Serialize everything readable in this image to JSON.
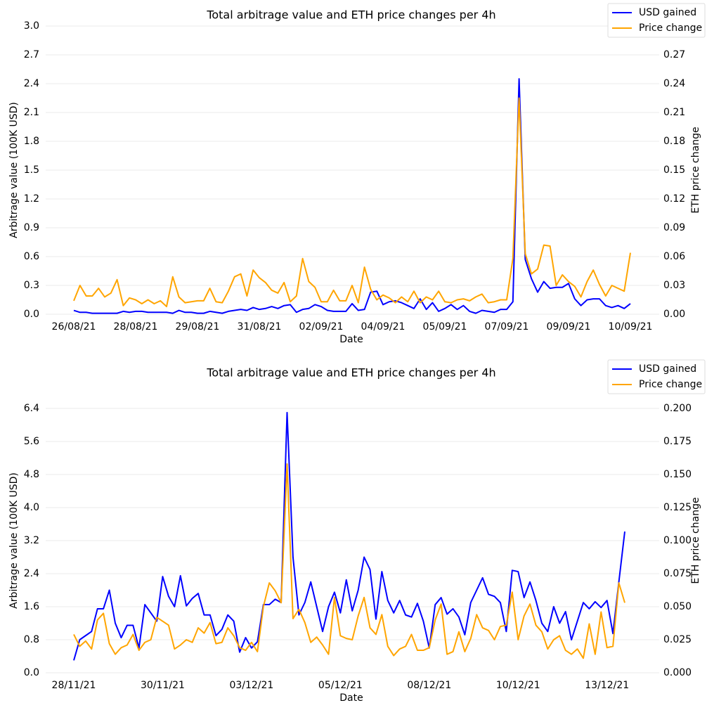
{
  "chart_data": [
    {
      "type": "line",
      "title": "Total arbitrage value and ETH price changes per 4h",
      "xlabel": "Date",
      "ylabel": "Arbitrage value (100K USD)",
      "y2label": "ETH price change",
      "categories": [
        "26/08/21",
        null,
        null,
        null,
        null,
        null,
        null,
        null,
        null,
        null,
        "28/08/21",
        null,
        null,
        null,
        null,
        null,
        null,
        null,
        null,
        null,
        "29/08/21",
        null,
        null,
        null,
        null,
        null,
        null,
        null,
        null,
        null,
        "31/08/21",
        null,
        null,
        null,
        null,
        null,
        null,
        null,
        null,
        null,
        "02/09/21",
        null,
        null,
        null,
        null,
        null,
        null,
        null,
        null,
        null,
        "04/09/21",
        null,
        null,
        null,
        null,
        null,
        null,
        null,
        null,
        null,
        "05/09/21",
        null,
        null,
        null,
        null,
        null,
        null,
        null,
        null,
        null,
        "07/09/21",
        null,
        null,
        null,
        null,
        null,
        null,
        null,
        null,
        null,
        "09/09/21",
        null,
        null,
        null,
        null,
        null,
        null,
        null,
        null,
        null,
        "10/09/21"
      ],
      "series": [
        {
          "name": "USD gained",
          "color": "#0000ff",
          "values": [
            0.04,
            0.02,
            0.02,
            0.01,
            0.01,
            0.01,
            0.01,
            0.01,
            0.03,
            0.02,
            0.03,
            0.03,
            0.02,
            0.02,
            0.02,
            0.02,
            0.01,
            0.04,
            0.02,
            0.02,
            0.01,
            0.01,
            0.03,
            0.02,
            0.01,
            0.03,
            0.04,
            0.05,
            0.04,
            0.07,
            0.05,
            0.06,
            0.08,
            0.06,
            0.09,
            0.1,
            0.02,
            0.05,
            0.06,
            0.1,
            0.08,
            0.04,
            0.03,
            0.03,
            0.03,
            0.11,
            0.04,
            0.05,
            0.23,
            0.24,
            0.1,
            0.13,
            0.14,
            0.12,
            0.09,
            0.06,
            0.16,
            0.05,
            0.12,
            0.03,
            0.06,
            0.1,
            0.05,
            0.09,
            0.03,
            0.01,
            0.04,
            0.03,
            0.02,
            0.05,
            0.05,
            0.13,
            2.45,
            0.57,
            0.37,
            0.23,
            0.34,
            0.27,
            0.28,
            0.28,
            0.32,
            0.16,
            0.09,
            0.15,
            0.16,
            0.16,
            0.09,
            0.07,
            0.09,
            0.06,
            0.11
          ]
        },
        {
          "name": "Price change",
          "color": "#ffa500",
          "axis": "y2",
          "values": [
            0.014,
            0.03,
            0.019,
            0.019,
            0.027,
            0.018,
            0.022,
            0.036,
            0.009,
            0.017,
            0.015,
            0.011,
            0.015,
            0.011,
            0.014,
            0.008,
            0.039,
            0.018,
            0.012,
            0.013,
            0.014,
            0.014,
            0.027,
            0.013,
            0.012,
            0.024,
            0.039,
            0.042,
            0.019,
            0.046,
            0.038,
            0.033,
            0.025,
            0.022,
            0.033,
            0.013,
            0.019,
            0.058,
            0.034,
            0.028,
            0.013,
            0.013,
            0.025,
            0.014,
            0.014,
            0.03,
            0.012,
            0.049,
            0.026,
            0.015,
            0.02,
            0.017,
            0.012,
            0.018,
            0.013,
            0.024,
            0.012,
            0.018,
            0.015,
            0.024,
            0.013,
            0.012,
            0.015,
            0.016,
            0.014,
            0.018,
            0.021,
            0.012,
            0.013,
            0.015,
            0.015,
            0.058,
            0.225,
            0.063,
            0.042,
            0.047,
            0.072,
            0.071,
            0.03,
            0.041,
            0.034,
            0.029,
            0.018,
            0.034,
            0.046,
            0.031,
            0.019,
            0.03,
            0.027,
            0.024,
            0.064
          ]
        }
      ],
      "ylim": [
        0,
        3.0
      ],
      "yticks": [
        {
          "value": 0,
          "label": "0.0"
        },
        0.3,
        0.6,
        0.9,
        1.2,
        1.5,
        1.8,
        2.1,
        2.4,
        2.7,
        {
          "value": 3.0,
          "label": "3.0"
        }
      ],
      "y2lim": [
        0,
        0.3
      ],
      "y2ticks": [
        {
          "value": 0,
          "label": "0.00"
        },
        0.03,
        0.06,
        0.09,
        0.12,
        0.15,
        0.18,
        0.21,
        0.24,
        0.27,
        {
          "value": 0.3,
          "label": "0.30"
        }
      ],
      "grid": true,
      "legend": "upper right"
    },
    {
      "type": "line",
      "title": "Total arbitrage value and ETH price changes per 4h",
      "xlabel": "Date",
      "ylabel": "Arbitrage value (100K USD)",
      "y2label": "ETH price change",
      "categories": [
        "28/11/21",
        null,
        null,
        null,
        null,
        null,
        null,
        null,
        null,
        null,
        null,
        null,
        null,
        null,
        null,
        "30/11/21",
        null,
        null,
        null,
        null,
        null,
        null,
        null,
        null,
        null,
        null,
        null,
        null,
        null,
        null,
        "03/12/21",
        null,
        null,
        null,
        null,
        null,
        null,
        null,
        null,
        null,
        null,
        null,
        null,
        null,
        null,
        "05/12/21",
        null,
        null,
        null,
        null,
        null,
        null,
        null,
        null,
        null,
        null,
        null,
        null,
        null,
        null,
        "08/12/21",
        null,
        null,
        null,
        null,
        null,
        null,
        null,
        null,
        null,
        null,
        null,
        null,
        null,
        null,
        "10/12/21",
        null,
        null,
        null,
        null,
        null,
        null,
        null,
        null,
        null,
        null,
        null,
        null,
        null,
        null,
        "13/12/21",
        null,
        null,
        null
      ],
      "series": [
        {
          "name": "USD gained",
          "color": "#0000ff",
          "values": [
            0.3,
            0.8,
            0.9,
            1.0,
            1.55,
            1.55,
            2.0,
            1.2,
            0.85,
            1.15,
            1.15,
            0.6,
            1.65,
            1.45,
            1.25,
            2.33,
            1.85,
            1.6,
            2.35,
            1.62,
            1.8,
            1.92,
            1.4,
            1.4,
            0.9,
            1.05,
            1.4,
            1.25,
            0.5,
            0.85,
            0.6,
            0.75,
            1.65,
            1.65,
            1.78,
            1.7,
            6.3,
            2.8,
            1.4,
            1.7,
            2.2,
            1.6,
            1.0,
            1.6,
            1.95,
            1.45,
            2.25,
            1.5,
            2.0,
            2.8,
            2.5,
            1.3,
            2.45,
            1.75,
            1.45,
            1.75,
            1.4,
            1.35,
            1.68,
            1.25,
            0.6,
            1.65,
            1.82,
            1.42,
            1.55,
            1.35,
            0.92,
            1.7,
            2.0,
            2.3,
            1.9,
            1.85,
            1.7,
            1.0,
            2.48,
            2.45,
            1.82,
            2.2,
            1.75,
            1.2,
            1.0,
            1.6,
            1.2,
            1.48,
            0.8,
            1.25,
            1.7,
            1.55,
            1.72,
            1.58,
            1.75,
            0.95,
            2.2,
            3.42
          ]
        },
        {
          "name": "Price change",
          "color": "#ffa500",
          "axis": "y2",
          "values": [
            0.029,
            0.02,
            0.024,
            0.018,
            0.04,
            0.045,
            0.022,
            0.014,
            0.019,
            0.021,
            0.029,
            0.017,
            0.023,
            0.025,
            0.042,
            0.039,
            0.036,
            0.018,
            0.021,
            0.025,
            0.023,
            0.034,
            0.03,
            0.038,
            0.022,
            0.023,
            0.034,
            0.028,
            0.019,
            0.017,
            0.023,
            0.016,
            0.05,
            0.068,
            0.062,
            0.053,
            0.158,
            0.041,
            0.048,
            0.038,
            0.023,
            0.027,
            0.021,
            0.014,
            0.057,
            0.028,
            0.026,
            0.025,
            0.043,
            0.057,
            0.034,
            0.029,
            0.044,
            0.02,
            0.013,
            0.018,
            0.02,
            0.029,
            0.017,
            0.017,
            0.019,
            0.04,
            0.052,
            0.014,
            0.016,
            0.031,
            0.016,
            0.026,
            0.044,
            0.034,
            0.032,
            0.025,
            0.035,
            0.036,
            0.061,
            0.025,
            0.043,
            0.052,
            0.036,
            0.031,
            0.018,
            0.025,
            0.028,
            0.017,
            0.014,
            0.018,
            0.011,
            0.037,
            0.014,
            0.046,
            0.019,
            0.02,
            0.068,
            0.053
          ]
        }
      ],
      "ylim": [
        0,
        6.4
      ],
      "yticks": [
        {
          "value": 0,
          "label": "0.0"
        },
        0.8,
        1.6,
        2.4,
        3.2,
        {
          "value": 4.0,
          "label": "4.0"
        },
        4.8,
        5.6,
        6.4
      ],
      "y2lim": [
        0,
        0.2
      ],
      "y2ticks": [
        {
          "value": 0,
          "label": "0.000"
        },
        0.025,
        {
          "value": 0.05,
          "label": "0.050"
        },
        0.075,
        {
          "value": 0.1,
          "label": "0.100"
        },
        0.125,
        {
          "value": 0.15,
          "label": "0.150"
        },
        0.175,
        {
          "value": 0.2,
          "label": "0.200"
        }
      ],
      "grid": true,
      "legend": "upper right"
    }
  ]
}
